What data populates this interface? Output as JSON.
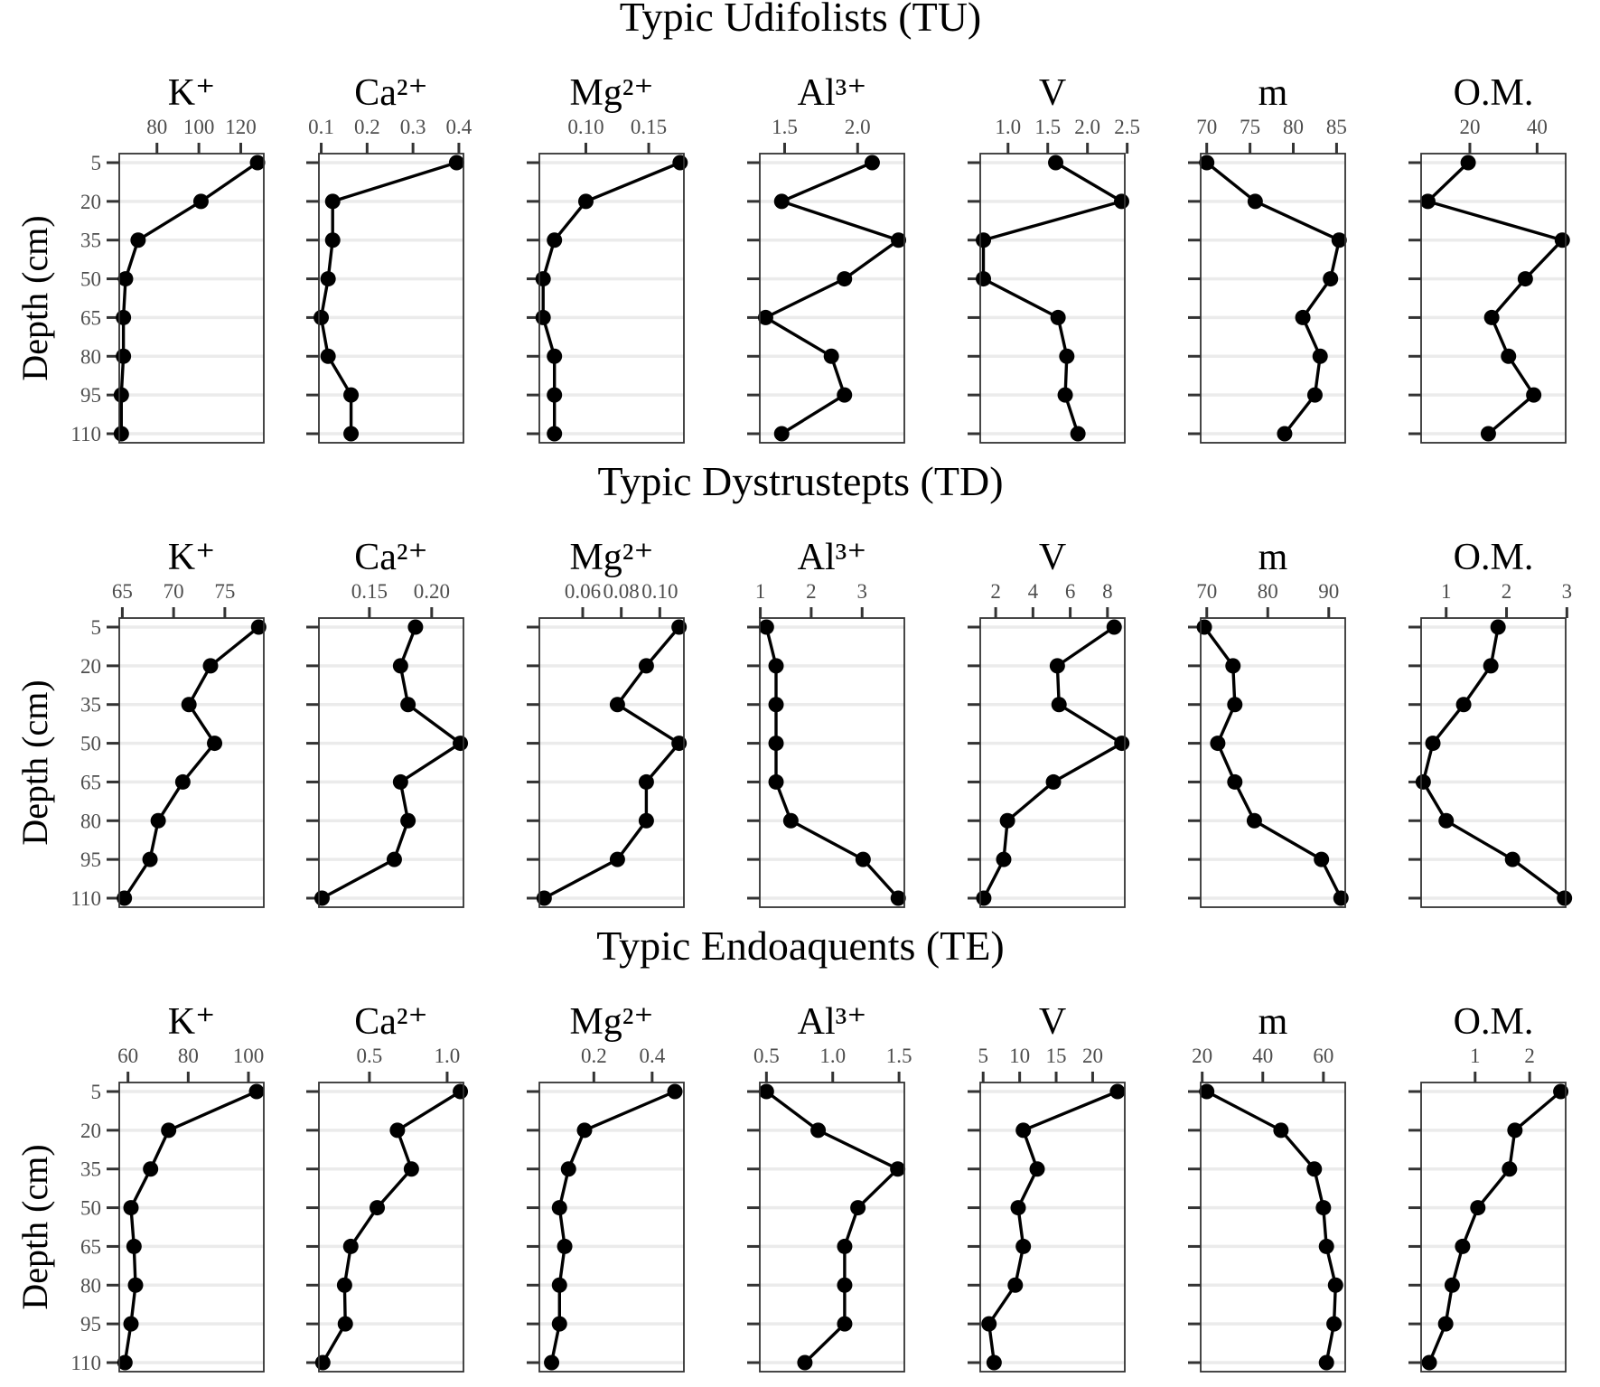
{
  "chart_data": [
    {
      "type": "line",
      "title": "Typic Udifolists (TU)",
      "ylabel": "Depth (cm)",
      "depths": [
        5,
        20,
        35,
        50,
        65,
        80,
        95,
        110
      ],
      "panels": [
        {
          "title": "K⁺",
          "xlim": [
            62,
            131
          ],
          "ticks": [
            80,
            100,
            120
          ],
          "tick_labels": [
            "80",
            "100",
            "120"
          ],
          "values": [
            128,
            101,
            71,
            65,
            64,
            64,
            63,
            63
          ]
        },
        {
          "title": "Ca²⁺",
          "xlim": [
            0.095,
            0.41
          ],
          "ticks": [
            0.1,
            0.2,
            0.3,
            0.4
          ],
          "tick_labels": [
            "0.1",
            "0.2",
            "0.3",
            "0.4"
          ],
          "values": [
            0.395,
            0.125,
            0.125,
            0.115,
            0.1,
            0.115,
            0.165,
            0.165
          ]
        },
        {
          "title": "Mg²⁺",
          "xlim": [
            0.063,
            0.178
          ],
          "ticks": [
            0.1,
            0.15
          ],
          "tick_labels": [
            "0.10",
            "0.15"
          ],
          "values": [
            0.175,
            0.1,
            0.075,
            0.066,
            0.066,
            0.075,
            0.075,
            0.075
          ]
        },
        {
          "title": "Al³⁺",
          "xlim": [
            1.33,
            2.32
          ],
          "ticks": [
            1.5,
            2.0
          ],
          "tick_labels": [
            "1.5",
            "2.0"
          ],
          "values": [
            2.1,
            1.48,
            2.28,
            1.91,
            1.37,
            1.82,
            1.91,
            1.48
          ]
        },
        {
          "title": "V",
          "xlim": [
            0.65,
            2.47
          ],
          "ticks": [
            1.0,
            1.5,
            2.0,
            2.5
          ],
          "tick_labels": [
            "1.0",
            "1.5",
            "2.0",
            "2.5"
          ],
          "values": [
            1.6,
            2.43,
            0.69,
            0.69,
            1.63,
            1.74,
            1.72,
            1.88
          ]
        },
        {
          "title": "m",
          "xlim": [
            69.3,
            86.0
          ],
          "ticks": [
            70,
            75,
            80,
            85
          ],
          "tick_labels": [
            "70",
            "75",
            "80",
            "85"
          ],
          "values": [
            70,
            75.6,
            85.3,
            84.3,
            81.1,
            83.1,
            82.5,
            79.0
          ]
        },
        {
          "title": "O.M.",
          "xlim": [
            5.5,
            48.5
          ],
          "ticks": [
            20,
            40
          ],
          "tick_labels": [
            "20",
            "40"
          ],
          "values": [
            19.5,
            7.5,
            47.5,
            36.5,
            26.5,
            31.5,
            39.0,
            25.5
          ]
        }
      ]
    },
    {
      "type": "line",
      "title": "Typic Dystrustepts (TD)",
      "ylabel": "Depth (cm)",
      "depths": [
        5,
        20,
        35,
        50,
        65,
        80,
        95,
        110
      ],
      "panels": [
        {
          "title": "K⁺",
          "xlim": [
            64.7,
            78.8
          ],
          "ticks": [
            65,
            70,
            75
          ],
          "tick_labels": [
            "65",
            "70",
            "75"
          ],
          "values": [
            78.3,
            73.6,
            71.5,
            74.0,
            70.9,
            68.5,
            67.7,
            65.2
          ]
        },
        {
          "title": "Ca²⁺",
          "xlim": [
            0.1095,
            0.2255
          ],
          "ticks": [
            0.15,
            0.2
          ],
          "tick_labels": [
            "0.15",
            "0.20"
          ],
          "values": [
            0.187,
            0.175,
            0.181,
            0.223,
            0.175,
            0.181,
            0.17,
            0.112
          ]
        },
        {
          "title": "Mg²⁺",
          "xlim": [
            0.0375,
            0.1125
          ],
          "ticks": [
            0.06,
            0.08,
            0.1
          ],
          "tick_labels": [
            "0.06",
            "0.08",
            "0.10"
          ],
          "values": [
            0.11,
            0.093,
            0.078,
            0.11,
            0.093,
            0.093,
            0.078,
            0.04
          ]
        },
        {
          "title": "Al³⁺",
          "xlim": [
            0.99,
            3.83
          ],
          "ticks": [
            1,
            2,
            3
          ],
          "tick_labels": [
            "1",
            "2",
            "3"
          ],
          "values": [
            1.12,
            1.31,
            1.31,
            1.31,
            1.31,
            1.6,
            3.02,
            3.71
          ]
        },
        {
          "title": "V",
          "xlim": [
            1.17,
            8.93
          ],
          "ticks": [
            2,
            4,
            6,
            8
          ],
          "tick_labels": [
            "2",
            "4",
            "6",
            "8"
          ],
          "values": [
            8.36,
            5.31,
            5.4,
            8.77,
            5.1,
            2.63,
            2.43,
            1.36
          ]
        },
        {
          "title": "m",
          "xlim": [
            69.0,
            92.7
          ],
          "ticks": [
            70,
            80,
            90
          ],
          "tick_labels": [
            "70",
            "80",
            "90"
          ],
          "values": [
            69.6,
            74.3,
            74.6,
            71.8,
            74.6,
            77.8,
            88.8,
            92.0
          ]
        },
        {
          "title": "O.M.",
          "xlim": [
            0.585,
            2.98
          ],
          "ticks": [
            1,
            2,
            3
          ],
          "tick_labels": [
            "1",
            "2",
            "3"
          ],
          "values": [
            1.86,
            1.74,
            1.29,
            0.78,
            0.62,
            1.0,
            2.1,
            2.96
          ]
        }
      ]
    },
    {
      "type": "line",
      "title": "Typic Endoaquents (TE)",
      "ylabel": "Depth (cm)",
      "depths": [
        5,
        20,
        35,
        50,
        65,
        80,
        95,
        110
      ],
      "panels": [
        {
          "title": "K⁺",
          "xlim": [
            57.1,
            105.1
          ],
          "ticks": [
            60,
            80,
            100
          ],
          "tick_labels": [
            "60",
            "80",
            "100"
          ],
          "values": [
            102.7,
            73.5,
            67.5,
            61.0,
            62.0,
            62.5,
            61.0,
            59.0
          ]
        },
        {
          "title": "Ca²⁺",
          "xlim": [
            0.175,
            1.105
          ],
          "ticks": [
            0.5,
            1.0
          ],
          "tick_labels": [
            "0.5",
            "1.0"
          ],
          "values": [
            1.085,
            0.68,
            0.77,
            0.55,
            0.38,
            0.34,
            0.345,
            0.2
          ]
        },
        {
          "title": "Mg²⁺",
          "xlim": [
            0.013,
            0.509
          ],
          "ticks": [
            0.2,
            0.4
          ],
          "tick_labels": [
            "0.2",
            "0.4"
          ],
          "values": [
            0.478,
            0.168,
            0.113,
            0.082,
            0.1,
            0.082,
            0.082,
            0.055
          ]
        },
        {
          "title": "Al³⁺",
          "xlim": [
            0.45,
            1.54
          ],
          "ticks": [
            0.5,
            1.0,
            1.5
          ],
          "tick_labels": [
            "0.5",
            "1.0",
            "1.5"
          ],
          "values": [
            0.5,
            0.89,
            1.49,
            1.19,
            1.09,
            1.09,
            1.09,
            0.79
          ]
        },
        {
          "title": "V",
          "xlim": [
            4.6,
            24.4
          ],
          "ticks": [
            5,
            10,
            15,
            20
          ],
          "tick_labels": [
            "5",
            "10",
            "15",
            "20"
          ],
          "values": [
            23.4,
            10.5,
            12.4,
            9.8,
            10.5,
            9.4,
            5.8,
            6.5
          ]
        },
        {
          "title": "m",
          "xlim": [
            19.5,
            67.2
          ],
          "ticks": [
            20,
            40,
            60
          ],
          "tick_labels": [
            "20",
            "40",
            "60"
          ],
          "values": [
            21.5,
            46.0,
            57.0,
            60.0,
            61.0,
            64.0,
            63.5,
            61.0
          ]
        },
        {
          "title": "O.M.",
          "xlim": [
            0.01,
            2.66
          ],
          "ticks": [
            1,
            2
          ],
          "tick_labels": [
            "1",
            "2"
          ],
          "values": [
            2.57,
            1.73,
            1.63,
            1.05,
            0.77,
            0.58,
            0.46,
            0.16
          ]
        }
      ]
    }
  ]
}
